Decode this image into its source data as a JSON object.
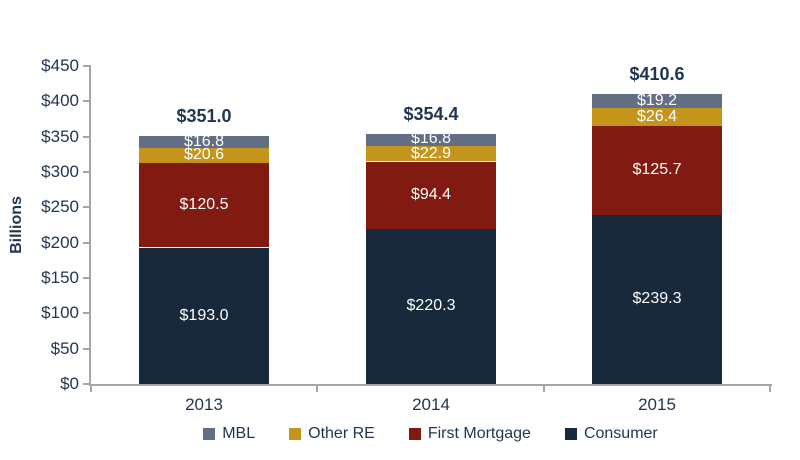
{
  "chart_data": {
    "type": "bar",
    "stacked": true,
    "title": "",
    "xlabel": "",
    "ylabel": "Billions",
    "categories": [
      "2013",
      "2014",
      "2015"
    ],
    "series": [
      {
        "name": "Consumer",
        "color": "#18293C",
        "values": [
          193.0,
          220.3,
          239.3
        ],
        "data_labels": [
          "$193.0",
          "$220.3",
          "$239.3"
        ]
      },
      {
        "name": "First Mortgage",
        "color": "#811A10",
        "values": [
          120.5,
          94.4,
          125.7
        ],
        "data_labels": [
          "$120.5",
          "$94.4",
          "$125.7"
        ]
      },
      {
        "name": "Other RE",
        "color": "#C5951B",
        "values": [
          20.6,
          22.9,
          26.4
        ],
        "data_labels": [
          "$20.6",
          "$22.9",
          "$26.4"
        ]
      },
      {
        "name": "MBL",
        "color": "#616E84",
        "values": [
          16.8,
          16.8,
          19.2
        ],
        "data_labels": [
          "$16.8",
          "$16.8",
          "$19.2"
        ]
      }
    ],
    "totals": {
      "values": [
        351.0,
        354.4,
        410.6
      ],
      "labels": [
        "$351.0",
        "$354.4",
        "$410.6"
      ]
    },
    "ylim": [
      0,
      450
    ],
    "y_tick_step": 50,
    "y_tick_labels": [
      "$0",
      "$50",
      "$100",
      "$150",
      "$200",
      "$250",
      "$300",
      "$350",
      "$400",
      "$450"
    ],
    "grid": false,
    "legend": {
      "position": "bottom",
      "items": [
        "MBL",
        "Other RE",
        "First Mortgage",
        "Consumer"
      ]
    }
  },
  "colors": {
    "axis_line": "#A6A6A6",
    "label_text": "#1F3550",
    "bar_label_text": "#FFFFFF",
    "background": "#FFFFFF"
  }
}
